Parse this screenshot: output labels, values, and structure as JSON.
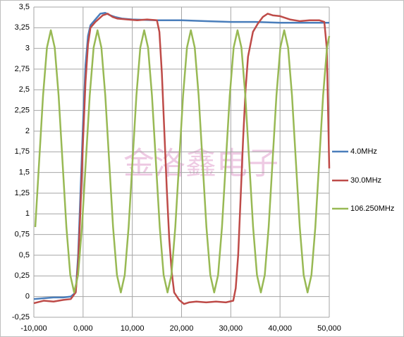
{
  "chart_data": {
    "type": "line",
    "watermark": "金洛鑫电子",
    "xlim": [
      -10000,
      50000
    ],
    "ylim": [
      -0.25,
      3.5
    ],
    "xticks": [
      {
        "value": -10000,
        "label": "-10,000"
      },
      {
        "value": 0,
        "label": "0,000"
      },
      {
        "value": 10000,
        "label": "10,000"
      },
      {
        "value": 20000,
        "label": "20,000"
      },
      {
        "value": 30000,
        "label": "30,000"
      },
      {
        "value": 40000,
        "label": "40,000"
      },
      {
        "value": 50000,
        "label": "50,000"
      }
    ],
    "yticks": [
      {
        "value": -0.25,
        "label": "-0,25"
      },
      0,
      {
        "value": 0.25,
        "label": "0,25"
      },
      {
        "value": 0.5,
        "label": "0,5"
      },
      {
        "value": 0.75,
        "label": "0,75"
      },
      1,
      {
        "value": 1.25,
        "label": "1,25"
      },
      {
        "value": 1.5,
        "label": "1,5"
      },
      {
        "value": 1.75,
        "label": "1,75"
      },
      2,
      {
        "value": 2.25,
        "label": "2,25"
      },
      {
        "value": 2.5,
        "label": "2,5"
      },
      {
        "value": 2.75,
        "label": "2,75"
      },
      3,
      {
        "value": 3.25,
        "label": "3,25"
      },
      {
        "value": 3.5,
        "label": "3,5"
      }
    ],
    "grid": true,
    "legend": "right",
    "series": [
      {
        "name": "4.0MHz",
        "color": "#4a7ebb",
        "x": [
          -10000,
          -8000,
          -6000,
          -4000,
          -2500,
          -1500,
          -1000,
          -500,
          0,
          500,
          1000,
          1500,
          2500,
          3500,
          4500,
          5500,
          6500,
          8000,
          10000,
          15000,
          20000,
          25000,
          30000,
          35000,
          40000,
          45000,
          50000
        ],
        "values": [
          -0.03,
          -0.02,
          -0.01,
          -0.01,
          0.0,
          0.05,
          0.5,
          1.3,
          2.1,
          2.8,
          3.15,
          3.28,
          3.35,
          3.42,
          3.43,
          3.4,
          3.38,
          3.36,
          3.35,
          3.34,
          3.34,
          3.33,
          3.32,
          3.32,
          3.31,
          3.31,
          3.31
        ]
      },
      {
        "name": "30.0MHz",
        "color": "#be4b48",
        "x": [
          -10000,
          -8000,
          -6000,
          -4000,
          -2500,
          -1500,
          -1000,
          -500,
          0,
          500,
          1000,
          1500,
          2500,
          4000,
          5000,
          6000,
          7000,
          9000,
          11000,
          13000,
          15000,
          15500,
          16000,
          16500,
          17000,
          17500,
          18000,
          18500,
          19500,
          20500,
          21500,
          23000,
          25000,
          27000,
          29000,
          30500,
          31000,
          31500,
          32000,
          32500,
          33000,
          33500,
          34500,
          35500,
          36500,
          37500,
          38500,
          40000,
          42000,
          44000,
          46000,
          48000,
          49000,
          49500,
          50000
        ],
        "values": [
          -0.08,
          -0.05,
          -0.06,
          -0.04,
          -0.03,
          0.05,
          0.4,
          1.1,
          1.9,
          2.6,
          3.05,
          3.25,
          3.32,
          3.4,
          3.42,
          3.38,
          3.36,
          3.35,
          3.34,
          3.35,
          3.34,
          3.2,
          2.7,
          2.0,
          1.3,
          0.7,
          0.3,
          0.05,
          -0.04,
          -0.09,
          -0.07,
          -0.06,
          -0.07,
          -0.06,
          -0.07,
          -0.05,
          0.1,
          0.5,
          1.2,
          1.9,
          2.5,
          2.9,
          3.2,
          3.3,
          3.38,
          3.42,
          3.4,
          3.39,
          3.35,
          3.33,
          3.34,
          3.34,
          3.32,
          3.0,
          1.55
        ]
      },
      {
        "name": "106.250MHz",
        "color": "#98b954",
        "x": [
          -9710,
          -8920,
          -8130,
          -7340,
          -6550,
          -5760,
          -4970,
          -4180,
          -3390,
          -2600,
          -1810,
          -1020,
          -230,
          560,
          1350,
          2140,
          2930,
          3720,
          4510,
          5300,
          6090,
          6880,
          7670,
          8460,
          9250,
          10040,
          10830,
          11620,
          12410,
          13200,
          13990,
          14780,
          15570,
          16360,
          17150,
          17940,
          18730,
          19520,
          20310,
          21100,
          21890,
          22680,
          23470,
          24260,
          25050,
          25840,
          26630,
          27420,
          28210,
          29000,
          29790,
          30580,
          31370,
          32160,
          32950,
          33740,
          34530,
          35320,
          36110,
          36900,
          37690,
          38480,
          39270,
          40060,
          40850,
          41640,
          42430,
          43220,
          44010,
          44800,
          45590,
          46380,
          47170,
          47960,
          48750,
          49540,
          50000
        ],
        "values": [
          0.84,
          1.635,
          2.43,
          3.01,
          3.22,
          3.01,
          2.43,
          1.635,
          0.84,
          0.26,
          0.05,
          0.26,
          0.84,
          1.635,
          2.43,
          3.01,
          3.22,
          3.01,
          2.43,
          1.635,
          0.84,
          0.26,
          0.05,
          0.26,
          0.84,
          1.635,
          2.43,
          3.01,
          3.22,
          3.01,
          2.43,
          1.635,
          0.84,
          0.26,
          0.05,
          0.26,
          0.84,
          1.635,
          2.43,
          3.01,
          3.22,
          3.01,
          2.43,
          1.635,
          0.84,
          0.26,
          0.05,
          0.26,
          0.84,
          1.635,
          2.43,
          3.01,
          3.22,
          3.01,
          2.43,
          1.635,
          0.84,
          0.26,
          0.05,
          0.26,
          0.84,
          1.635,
          2.43,
          3.01,
          3.22,
          3.01,
          2.43,
          1.635,
          0.84,
          0.26,
          0.05,
          0.26,
          0.84,
          1.635,
          2.43,
          3.01,
          3.15
        ]
      }
    ]
  }
}
